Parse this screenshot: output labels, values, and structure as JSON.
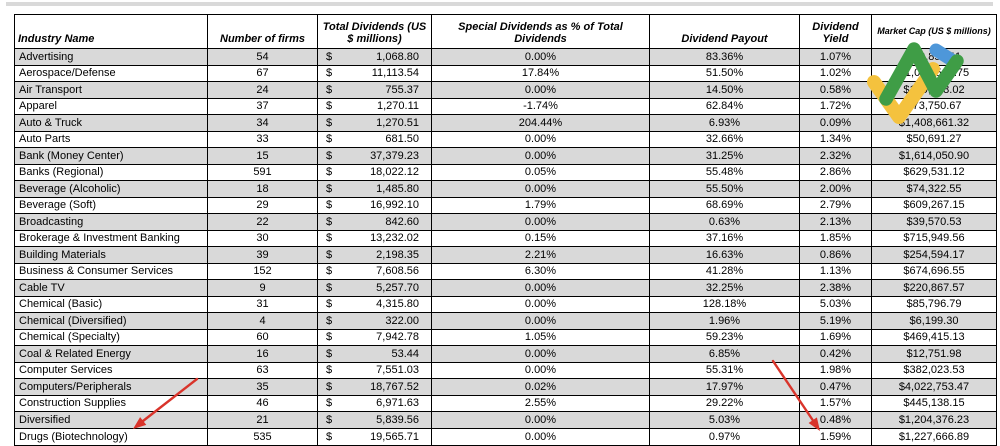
{
  "table": {
    "currency_symbol": "$",
    "columns": [
      {
        "label": "Industry Name"
      },
      {
        "label": "Number of firms"
      },
      {
        "label": "Total Dividends (US $ millions)"
      },
      {
        "label": "Special Dividends as % of Total Dividends"
      },
      {
        "label": "Dividend Payout"
      },
      {
        "label": "Dividend Yield"
      },
      {
        "label": "Market Cap (US $ millions)"
      }
    ],
    "rows": [
      {
        "industry": "Advertising",
        "number_of_firms": "54",
        "total_dividends": "1,068.80",
        "special_dividends_pct_of_total": "0.00%",
        "dividend_payout": "83.36%",
        "dividend_yield": "1.07%",
        "market_cap": "$99,853.11"
      },
      {
        "industry": "Aerospace/Defense",
        "number_of_firms": "67",
        "total_dividends": "11,113.54",
        "special_dividends_pct_of_total": "17.84%",
        "dividend_payout": "51.50%",
        "dividend_yield": "1.02%",
        "market_cap": "$1,089,560.75"
      },
      {
        "industry": "Air Transport",
        "number_of_firms": "24",
        "total_dividends": "755.37",
        "special_dividends_pct_of_total": "0.00%",
        "dividend_payout": "14.50%",
        "dividend_yield": "0.58%",
        "market_cap": "$129,748.02"
      },
      {
        "industry": "Apparel",
        "number_of_firms": "37",
        "total_dividends": "1,270.11",
        "special_dividends_pct_of_total": "-1.74%",
        "dividend_payout": "62.84%",
        "dividend_yield": "1.72%",
        "market_cap": "$73,750.67"
      },
      {
        "industry": "Auto & Truck",
        "number_of_firms": "34",
        "total_dividends": "1,270.51",
        "special_dividends_pct_of_total": "204.44%",
        "dividend_payout": "6.93%",
        "dividend_yield": "0.09%",
        "market_cap": "$1,408,661.32"
      },
      {
        "industry": "Auto Parts",
        "number_of_firms": "33",
        "total_dividends": "681.50",
        "special_dividends_pct_of_total": "0.00%",
        "dividend_payout": "32.66%",
        "dividend_yield": "1.34%",
        "market_cap": "$50,691.27"
      },
      {
        "industry": "Bank (Money Center)",
        "number_of_firms": "15",
        "total_dividends": "37,379.23",
        "special_dividends_pct_of_total": "0.00%",
        "dividend_payout": "31.25%",
        "dividend_yield": "2.32%",
        "market_cap": "$1,614,050.90"
      },
      {
        "industry": "Banks (Regional)",
        "number_of_firms": "591",
        "total_dividends": "18,022.12",
        "special_dividends_pct_of_total": "0.05%",
        "dividend_payout": "55.48%",
        "dividend_yield": "2.86%",
        "market_cap": "$629,531.12"
      },
      {
        "industry": "Beverage (Alcoholic)",
        "number_of_firms": "18",
        "total_dividends": "1,485.80",
        "special_dividends_pct_of_total": "0.00%",
        "dividend_payout": "55.50%",
        "dividend_yield": "2.00%",
        "market_cap": "$74,322.55"
      },
      {
        "industry": "Beverage (Soft)",
        "number_of_firms": "29",
        "total_dividends": "16,992.10",
        "special_dividends_pct_of_total": "1.79%",
        "dividend_payout": "68.69%",
        "dividend_yield": "2.79%",
        "market_cap": "$609,267.15"
      },
      {
        "industry": "Broadcasting",
        "number_of_firms": "22",
        "total_dividends": "842.60",
        "special_dividends_pct_of_total": "0.00%",
        "dividend_payout": "0.63%",
        "dividend_yield": "2.13%",
        "market_cap": "$39,570.53"
      },
      {
        "industry": "Brokerage & Investment Banking",
        "number_of_firms": "30",
        "total_dividends": "13,232.02",
        "special_dividends_pct_of_total": "0.15%",
        "dividend_payout": "37.16%",
        "dividend_yield": "1.85%",
        "market_cap": "$715,949.56"
      },
      {
        "industry": "Building Materials",
        "number_of_firms": "39",
        "total_dividends": "2,198.35",
        "special_dividends_pct_of_total": "2.21%",
        "dividend_payout": "16.63%",
        "dividend_yield": "0.86%",
        "market_cap": "$254,594.17"
      },
      {
        "industry": "Business & Consumer Services",
        "number_of_firms": "152",
        "total_dividends": "7,608.56",
        "special_dividends_pct_of_total": "6.30%",
        "dividend_payout": "41.28%",
        "dividend_yield": "1.13%",
        "market_cap": "$674,696.55"
      },
      {
        "industry": "Cable TV",
        "number_of_firms": "9",
        "total_dividends": "5,257.70",
        "special_dividends_pct_of_total": "0.00%",
        "dividend_payout": "32.25%",
        "dividend_yield": "2.38%",
        "market_cap": "$220,867.57"
      },
      {
        "industry": "Chemical (Basic)",
        "number_of_firms": "31",
        "total_dividends": "4,315.80",
        "special_dividends_pct_of_total": "0.00%",
        "dividend_payout": "128.18%",
        "dividend_yield": "5.03%",
        "market_cap": "$85,796.79"
      },
      {
        "industry": "Chemical (Diversified)",
        "number_of_firms": "4",
        "total_dividends": "322.00",
        "special_dividends_pct_of_total": "0.00%",
        "dividend_payout": "1.96%",
        "dividend_yield": "5.19%",
        "market_cap": "$6,199.30"
      },
      {
        "industry": "Chemical (Specialty)",
        "number_of_firms": "60",
        "total_dividends": "7,942.78",
        "special_dividends_pct_of_total": "1.05%",
        "dividend_payout": "59.23%",
        "dividend_yield": "1.69%",
        "market_cap": "$469,415.13"
      },
      {
        "industry": "Coal & Related Energy",
        "number_of_firms": "16",
        "total_dividends": "53.44",
        "special_dividends_pct_of_total": "0.00%",
        "dividend_payout": "6.85%",
        "dividend_yield": "0.42%",
        "market_cap": "$12,751.98"
      },
      {
        "industry": "Computer Services",
        "number_of_firms": "63",
        "total_dividends": "7,551.03",
        "special_dividends_pct_of_total": "0.00%",
        "dividend_payout": "55.31%",
        "dividend_yield": "1.98%",
        "market_cap": "$382,023.53"
      },
      {
        "industry": "Computers/Peripherals",
        "number_of_firms": "35",
        "total_dividends": "18,767.52",
        "special_dividends_pct_of_total": "0.02%",
        "dividend_payout": "17.97%",
        "dividend_yield": "0.47%",
        "market_cap": "$4,022,753.47"
      },
      {
        "industry": "Construction Supplies",
        "number_of_firms": "46",
        "total_dividends": "6,971.63",
        "special_dividends_pct_of_total": "2.55%",
        "dividend_payout": "29.22%",
        "dividend_yield": "1.57%",
        "market_cap": "$445,138.15"
      },
      {
        "industry": "Diversified",
        "number_of_firms": "21",
        "total_dividends": "5,839.56",
        "special_dividends_pct_of_total": "0.00%",
        "dividend_payout": "5.03%",
        "dividend_yield": "0.48%",
        "market_cap": "$1,204,376.23"
      },
      {
        "industry": "Drugs (Biotechnology)",
        "number_of_firms": "535",
        "total_dividends": "19,565.71",
        "special_dividends_pct_of_total": "0.00%",
        "dividend_payout": "0.97%",
        "dividend_yield": "1.59%",
        "market_cap": "$1,227,666.89"
      }
    ]
  },
  "annotations": {
    "arrows": [
      {
        "points_to": "Drugs (Biotechnology) row label"
      },
      {
        "points_to": "Drugs (Biotechnology) dividend yield value 1.59%"
      }
    ],
    "watermark": {
      "description": "brand check-mark logo overlapping Market Cap column"
    }
  },
  "colors": {
    "arrow_red": "#d9342b",
    "logo_green": "#3f9d46",
    "logo_yellow": "#f4c23e",
    "logo_blue": "#4e97d9",
    "row_shade": "#d9d9d9",
    "border": "#000000"
  }
}
